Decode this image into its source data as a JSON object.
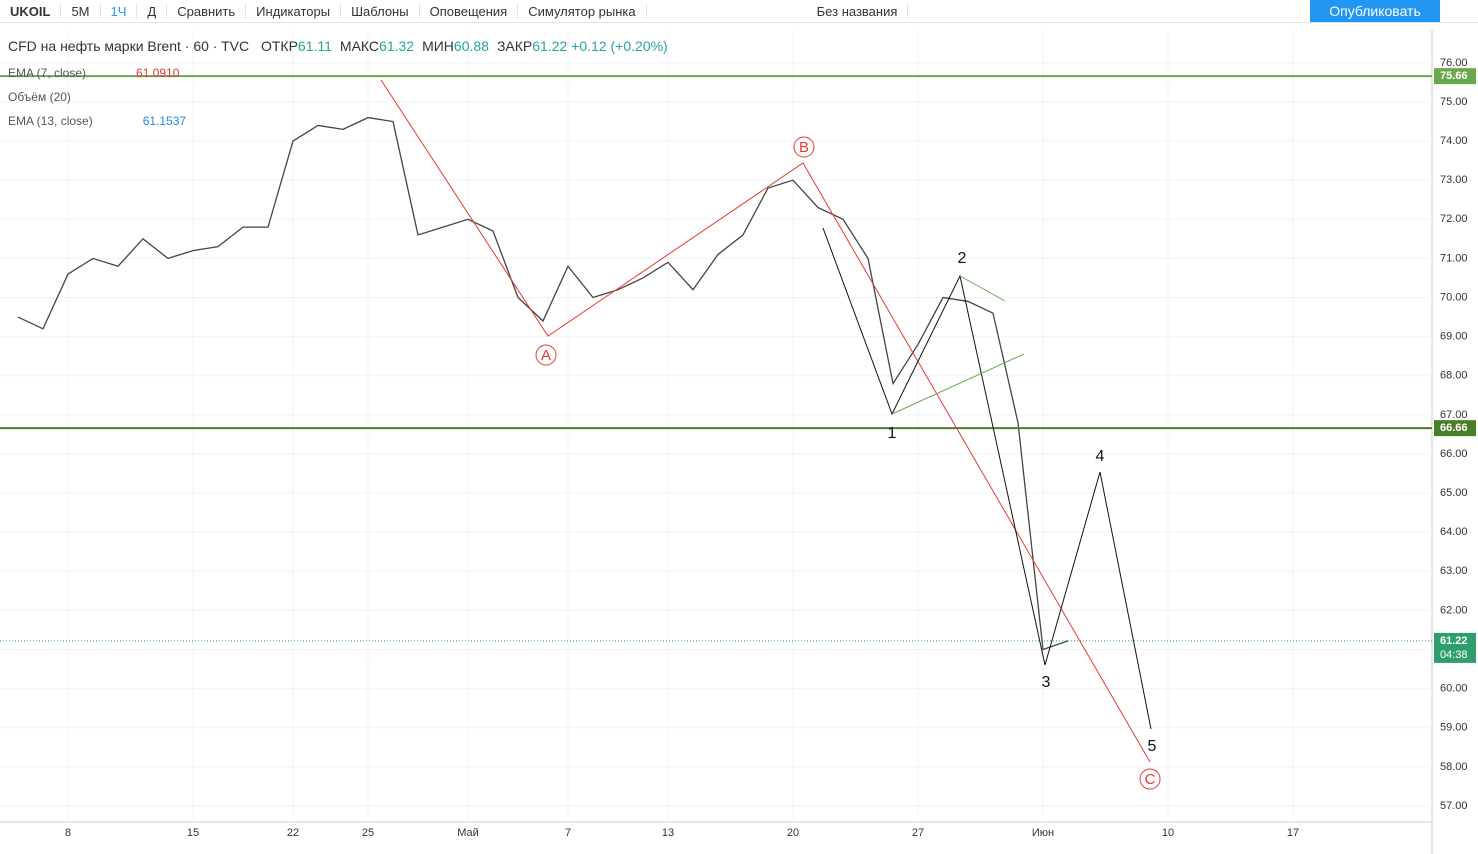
{
  "toolbar": {
    "symbol": "UKOIL",
    "intervals": [
      "5М",
      "1Ч",
      "Д"
    ],
    "buttons": [
      "Сравнить",
      "Индикаторы",
      "Шаблоны",
      "Оповещения",
      "Симулятор рынка"
    ],
    "layout_name": "Без названия",
    "publish": "Опубликовать"
  },
  "legend": {
    "instrument": "CFD на нефть марки Brent · 60 · TVC",
    "ohlc": [
      {
        "label": "ОТКР",
        "value": 61.11
      },
      {
        "label": "МАКС",
        "value": 61.32
      },
      {
        "label": "МИН",
        "value": 60.88
      },
      {
        "label": "ЗАКР",
        "value": 61.22
      }
    ],
    "change": "+0.12 (+0.20%)",
    "indicators": [
      {
        "name": "EMA (7, close)",
        "value": "61.0910",
        "color": "#e53935"
      },
      {
        "name": "Объём (20)"
      },
      {
        "name": "EMA (13, close)",
        "value": "61.1537",
        "color": "#1e88e5"
      }
    ]
  },
  "chart_data": {
    "type": "line",
    "categories": [
      null,
      null,
      "8",
      null,
      null,
      null,
      null,
      "15",
      null,
      null,
      null,
      "22",
      null,
      null,
      "25",
      null,
      null,
      null,
      "Май",
      null,
      null,
      null,
      "7",
      null,
      null,
      null,
      "13",
      null,
      null,
      null,
      null,
      "20",
      null,
      null,
      null,
      null,
      "27",
      null,
      null,
      null,
      null,
      "Июн",
      null,
      null,
      null,
      null,
      "10",
      null,
      null,
      null,
      null,
      "17",
      null,
      null,
      null,
      null,
      null
    ],
    "values": [
      69.5,
      69.2,
      70.6,
      71.0,
      70.8,
      71.5,
      71.0,
      71.2,
      71.3,
      71.8,
      71.8,
      74.0,
      74.4,
      74.3,
      74.6,
      74.5,
      71.6,
      71.8,
      72.0,
      71.7,
      70.0,
      69.4,
      70.8,
      70.0,
      70.2,
      70.5,
      70.9,
      70.2,
      71.1,
      71.6,
      72.8,
      73.0,
      72.3,
      72.0,
      71.0,
      67.8,
      68.8,
      70.0,
      69.9,
      69.6,
      66.8,
      61.0,
      61.22,
      null,
      null,
      null,
      null,
      null,
      null,
      null,
      null,
      null,
      null,
      null,
      null,
      null,
      null
    ],
    "color": "#444444",
    "ylim": [
      56.59,
      76.84
    ],
    "yticks": [
      {
        "value": 57,
        "label": "57.00"
      },
      {
        "value": 58,
        "label": "58.00"
      },
      {
        "value": 59,
        "label": "59.00"
      },
      {
        "value": 60,
        "label": "60.00"
      },
      {
        "value": 61,
        "label": "61.00"
      },
      {
        "value": 62,
        "label": "62.00"
      },
      {
        "value": 63,
        "label": "63.00"
      },
      {
        "value": 64,
        "label": "64.00"
      },
      {
        "value": 65,
        "label": "65.00"
      },
      {
        "value": 66,
        "label": "66.00"
      },
      {
        "value": 67,
        "label": "67.00"
      },
      {
        "value": 68,
        "label": "68.00"
      },
      {
        "value": 69,
        "label": "69.00"
      },
      {
        "value": 70,
        "label": "70.00"
      },
      {
        "value": 71,
        "label": "71.00"
      },
      {
        "value": 72,
        "label": "72.00"
      },
      {
        "value": 73,
        "label": "73.00"
      },
      {
        "value": 74,
        "label": "74.00"
      },
      {
        "value": 75,
        "label": "75.00"
      },
      {
        "value": 76,
        "label": "76.00"
      }
    ],
    "grid": true,
    "hlines": [
      {
        "value": 75.66,
        "color": "#6aa84f"
      },
      {
        "value": 66.66,
        "color": "#4a7f2a"
      }
    ],
    "last": {
      "value": 61.22,
      "countdown": "04:38",
      "color": "#2e9e6b"
    },
    "waves": {
      "abc": [
        "A",
        "B",
        "C"
      ],
      "impulse": [
        "1",
        "2",
        "3",
        "4",
        "5"
      ]
    }
  }
}
